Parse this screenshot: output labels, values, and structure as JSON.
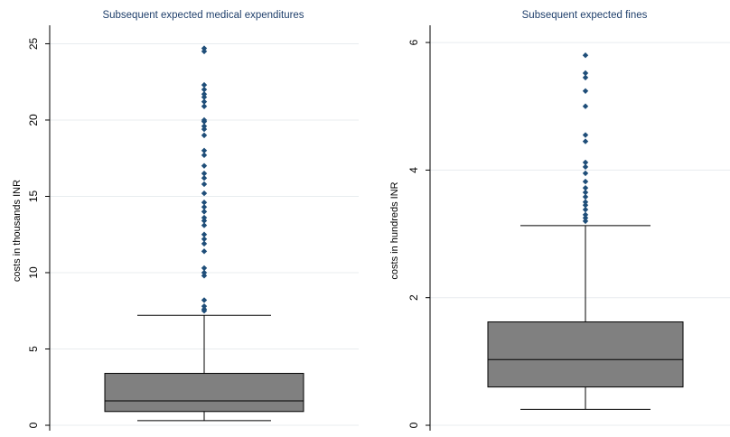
{
  "chart_data": [
    {
      "type": "boxplot",
      "title": "Subsequent expected medical expenditures",
      "ylabel": "costs in thousands INR",
      "xlabel": "",
      "ylim": [
        0,
        25.5
      ],
      "yticks": [
        0,
        5,
        10,
        15,
        20,
        25
      ],
      "grid": true,
      "box": {
        "whisker_low": 0.3,
        "q1": 0.9,
        "median": 1.6,
        "q3": 3.4,
        "whisker_high": 7.2
      },
      "outliers": [
        7.5,
        7.6,
        7.8,
        8.2,
        9.8,
        10.0,
        10.3,
        11.4,
        11.9,
        12.2,
        12.5,
        13.1,
        13.4,
        13.6,
        14.0,
        14.3,
        14.6,
        15.2,
        15.8,
        16.2,
        16.5,
        17.0,
        17.7,
        18.0,
        19.0,
        19.4,
        19.6,
        19.9,
        20.0,
        20.9,
        21.2,
        21.5,
        21.7,
        22.0,
        22.3,
        24.5,
        24.7
      ],
      "colors": {
        "box": "#808080",
        "outlier": "#1f4e79",
        "title": "#1f3f6b"
      }
    },
    {
      "type": "boxplot",
      "title": "Subsequent expected fines",
      "ylabel": "costs in hundreds INR",
      "xlabel": "",
      "ylim": [
        0,
        6.1
      ],
      "yticks": [
        0,
        2,
        4,
        6
      ],
      "grid": true,
      "box": {
        "whisker_low": 0.25,
        "q1": 0.6,
        "median": 1.03,
        "q3": 1.62,
        "whisker_high": 3.13
      },
      "outliers": [
        3.2,
        3.25,
        3.3,
        3.38,
        3.45,
        3.5,
        3.58,
        3.65,
        3.72,
        3.82,
        3.95,
        4.05,
        4.12,
        4.45,
        4.55,
        5.0,
        5.24,
        5.45,
        5.52,
        5.8
      ],
      "colors": {
        "box": "#808080",
        "outlier": "#1f4e79",
        "title": "#1f3f6b"
      }
    }
  ]
}
